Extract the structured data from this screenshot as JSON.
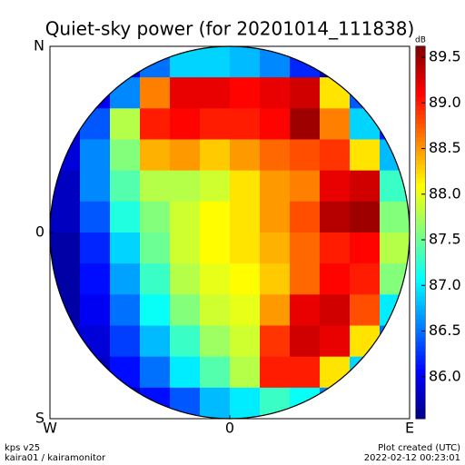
{
  "chart_data": {
    "type": "heatmap",
    "title": "Quiet-sky power (for 20201014_111838)",
    "xlim": [
      -1,
      1
    ],
    "xticks": [
      {
        "value": -1,
        "label": "W"
      },
      0,
      {
        "value": 1,
        "label": "E"
      }
    ],
    "ylim": [
      -1,
      1
    ],
    "yticks": [
      {
        "value": 1,
        "label": "N"
      },
      0,
      {
        "value": -1,
        "label": "S"
      }
    ],
    "colorbar_label": "dB",
    "clim": [
      85.54,
      89.62
    ],
    "cticks": [
      {
        "value": 86,
        "label": "86.0"
      },
      86.5,
      {
        "value": 87,
        "label": "87.0"
      },
      87.5,
      {
        "value": 88,
        "label": "88.0"
      },
      88.5,
      {
        "value": 89,
        "label": "89.0"
      },
      89.5
    ],
    "values": [
      [
        null,
        null,
        86.0,
        86.5,
        86.9,
        86.9,
        86.8,
        86.6,
        86.2,
        85.8,
        null,
        null
      ],
      [
        null,
        86.0,
        86.6,
        88.6,
        89.2,
        89.2,
        89.1,
        89.2,
        89.3,
        88.2,
        86.4,
        null
      ],
      [
        85.9,
        86.4,
        87.8,
        89.0,
        89.1,
        89.0,
        89.0,
        89.1,
        89.5,
        88.6,
        86.9,
        86.2
      ],
      [
        85.9,
        86.6,
        87.6,
        88.4,
        88.5,
        88.3,
        88.5,
        88.7,
        88.8,
        88.9,
        88.2,
        86.8
      ],
      [
        85.8,
        86.6,
        87.4,
        87.8,
        87.8,
        87.9,
        88.2,
        88.5,
        88.6,
        89.2,
        89.3,
        87.3
      ],
      [
        85.8,
        86.4,
        87.2,
        87.6,
        87.9,
        88.1,
        88.2,
        88.5,
        88.8,
        89.4,
        89.5,
        87.6
      ],
      [
        85.7,
        86.2,
        86.9,
        87.5,
        87.9,
        88.1,
        88.2,
        88.4,
        88.7,
        89.0,
        89.1,
        87.8
      ],
      [
        85.7,
        86.1,
        86.7,
        87.3,
        87.8,
        88.0,
        88.1,
        88.3,
        88.7,
        89.1,
        89.0,
        87.6
      ],
      [
        85.7,
        86.0,
        86.5,
        87.1,
        87.6,
        87.9,
        88.0,
        88.5,
        89.2,
        89.3,
        88.8,
        87.0
      ],
      [
        85.8,
        85.9,
        86.3,
        86.8,
        87.3,
        87.7,
        87.9,
        88.9,
        89.3,
        89.2,
        88.2,
        86.5
      ],
      [
        null,
        85.8,
        86.1,
        86.5,
        87.0,
        87.4,
        87.8,
        89.0,
        89.0,
        88.2,
        86.9,
        null
      ],
      [
        null,
        null,
        85.8,
        86.1,
        86.4,
        86.8,
        87.0,
        87.3,
        87.1,
        86.6,
        null,
        null
      ]
    ],
    "footer_left": [
      "kps v25",
      "kaira01 / kairamonitor"
    ],
    "footer_right": [
      "Plot created (UTC)",
      "2022-02-12 00:23:01"
    ]
  }
}
